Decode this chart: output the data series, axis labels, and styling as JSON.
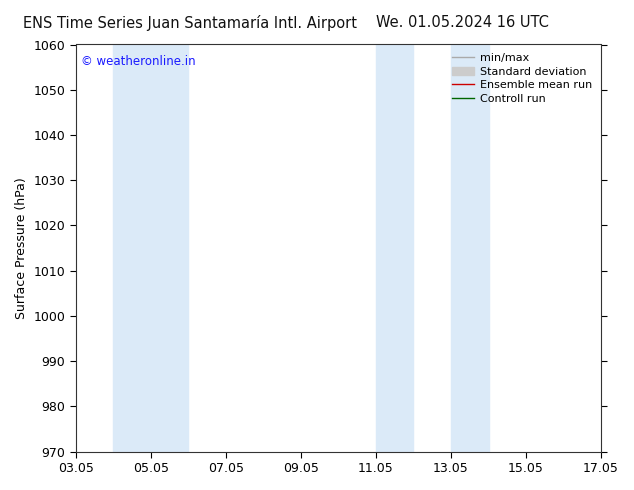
{
  "title_left": "ENS Time Series Juan Santamaría Intl. Airport",
  "title_right": "We. 01.05.2024 16 UTC",
  "ylabel": "Surface Pressure (hPa)",
  "ylim": [
    970,
    1060
  ],
  "yticks": [
    970,
    980,
    990,
    1000,
    1010,
    1020,
    1030,
    1040,
    1050,
    1060
  ],
  "xtick_labels": [
    "03.05",
    "05.05",
    "07.05",
    "09.05",
    "11.05",
    "13.05",
    "15.05",
    "17.05"
  ],
  "xtick_positions": [
    0,
    2,
    4,
    6,
    8,
    10,
    12,
    14
  ],
  "shaded_bands": [
    {
      "x_start": 1.0,
      "x_end": 2.0
    },
    {
      "x_start": 2.0,
      "x_end": 3.0
    },
    {
      "x_start": 8.0,
      "x_end": 9.0
    },
    {
      "x_start": 10.0,
      "x_end": 11.0
    }
  ],
  "shade_color": "#dbeaf8",
  "background_color": "#ffffff",
  "watermark_text": "© weatheronline.in",
  "watermark_color": "#1a1aff",
  "legend_entries": [
    {
      "label": "min/max",
      "color": "#aaaaaa",
      "lw": 1.0,
      "style": "-",
      "type": "line_with_caps"
    },
    {
      "label": "Standard deviation",
      "color": "#cccccc",
      "lw": 8,
      "style": "-",
      "type": "thick_line"
    },
    {
      "label": "Ensemble mean run",
      "color": "#cc0000",
      "lw": 1.0,
      "style": "-",
      "type": "line"
    },
    {
      "label": "Controll run",
      "color": "#006600",
      "lw": 1.0,
      "style": "-",
      "type": "line"
    }
  ],
  "grid_color": "#dddddd",
  "title_fontsize": 10.5,
  "axis_label_fontsize": 9,
  "tick_fontsize": 9,
  "legend_fontsize": 8
}
